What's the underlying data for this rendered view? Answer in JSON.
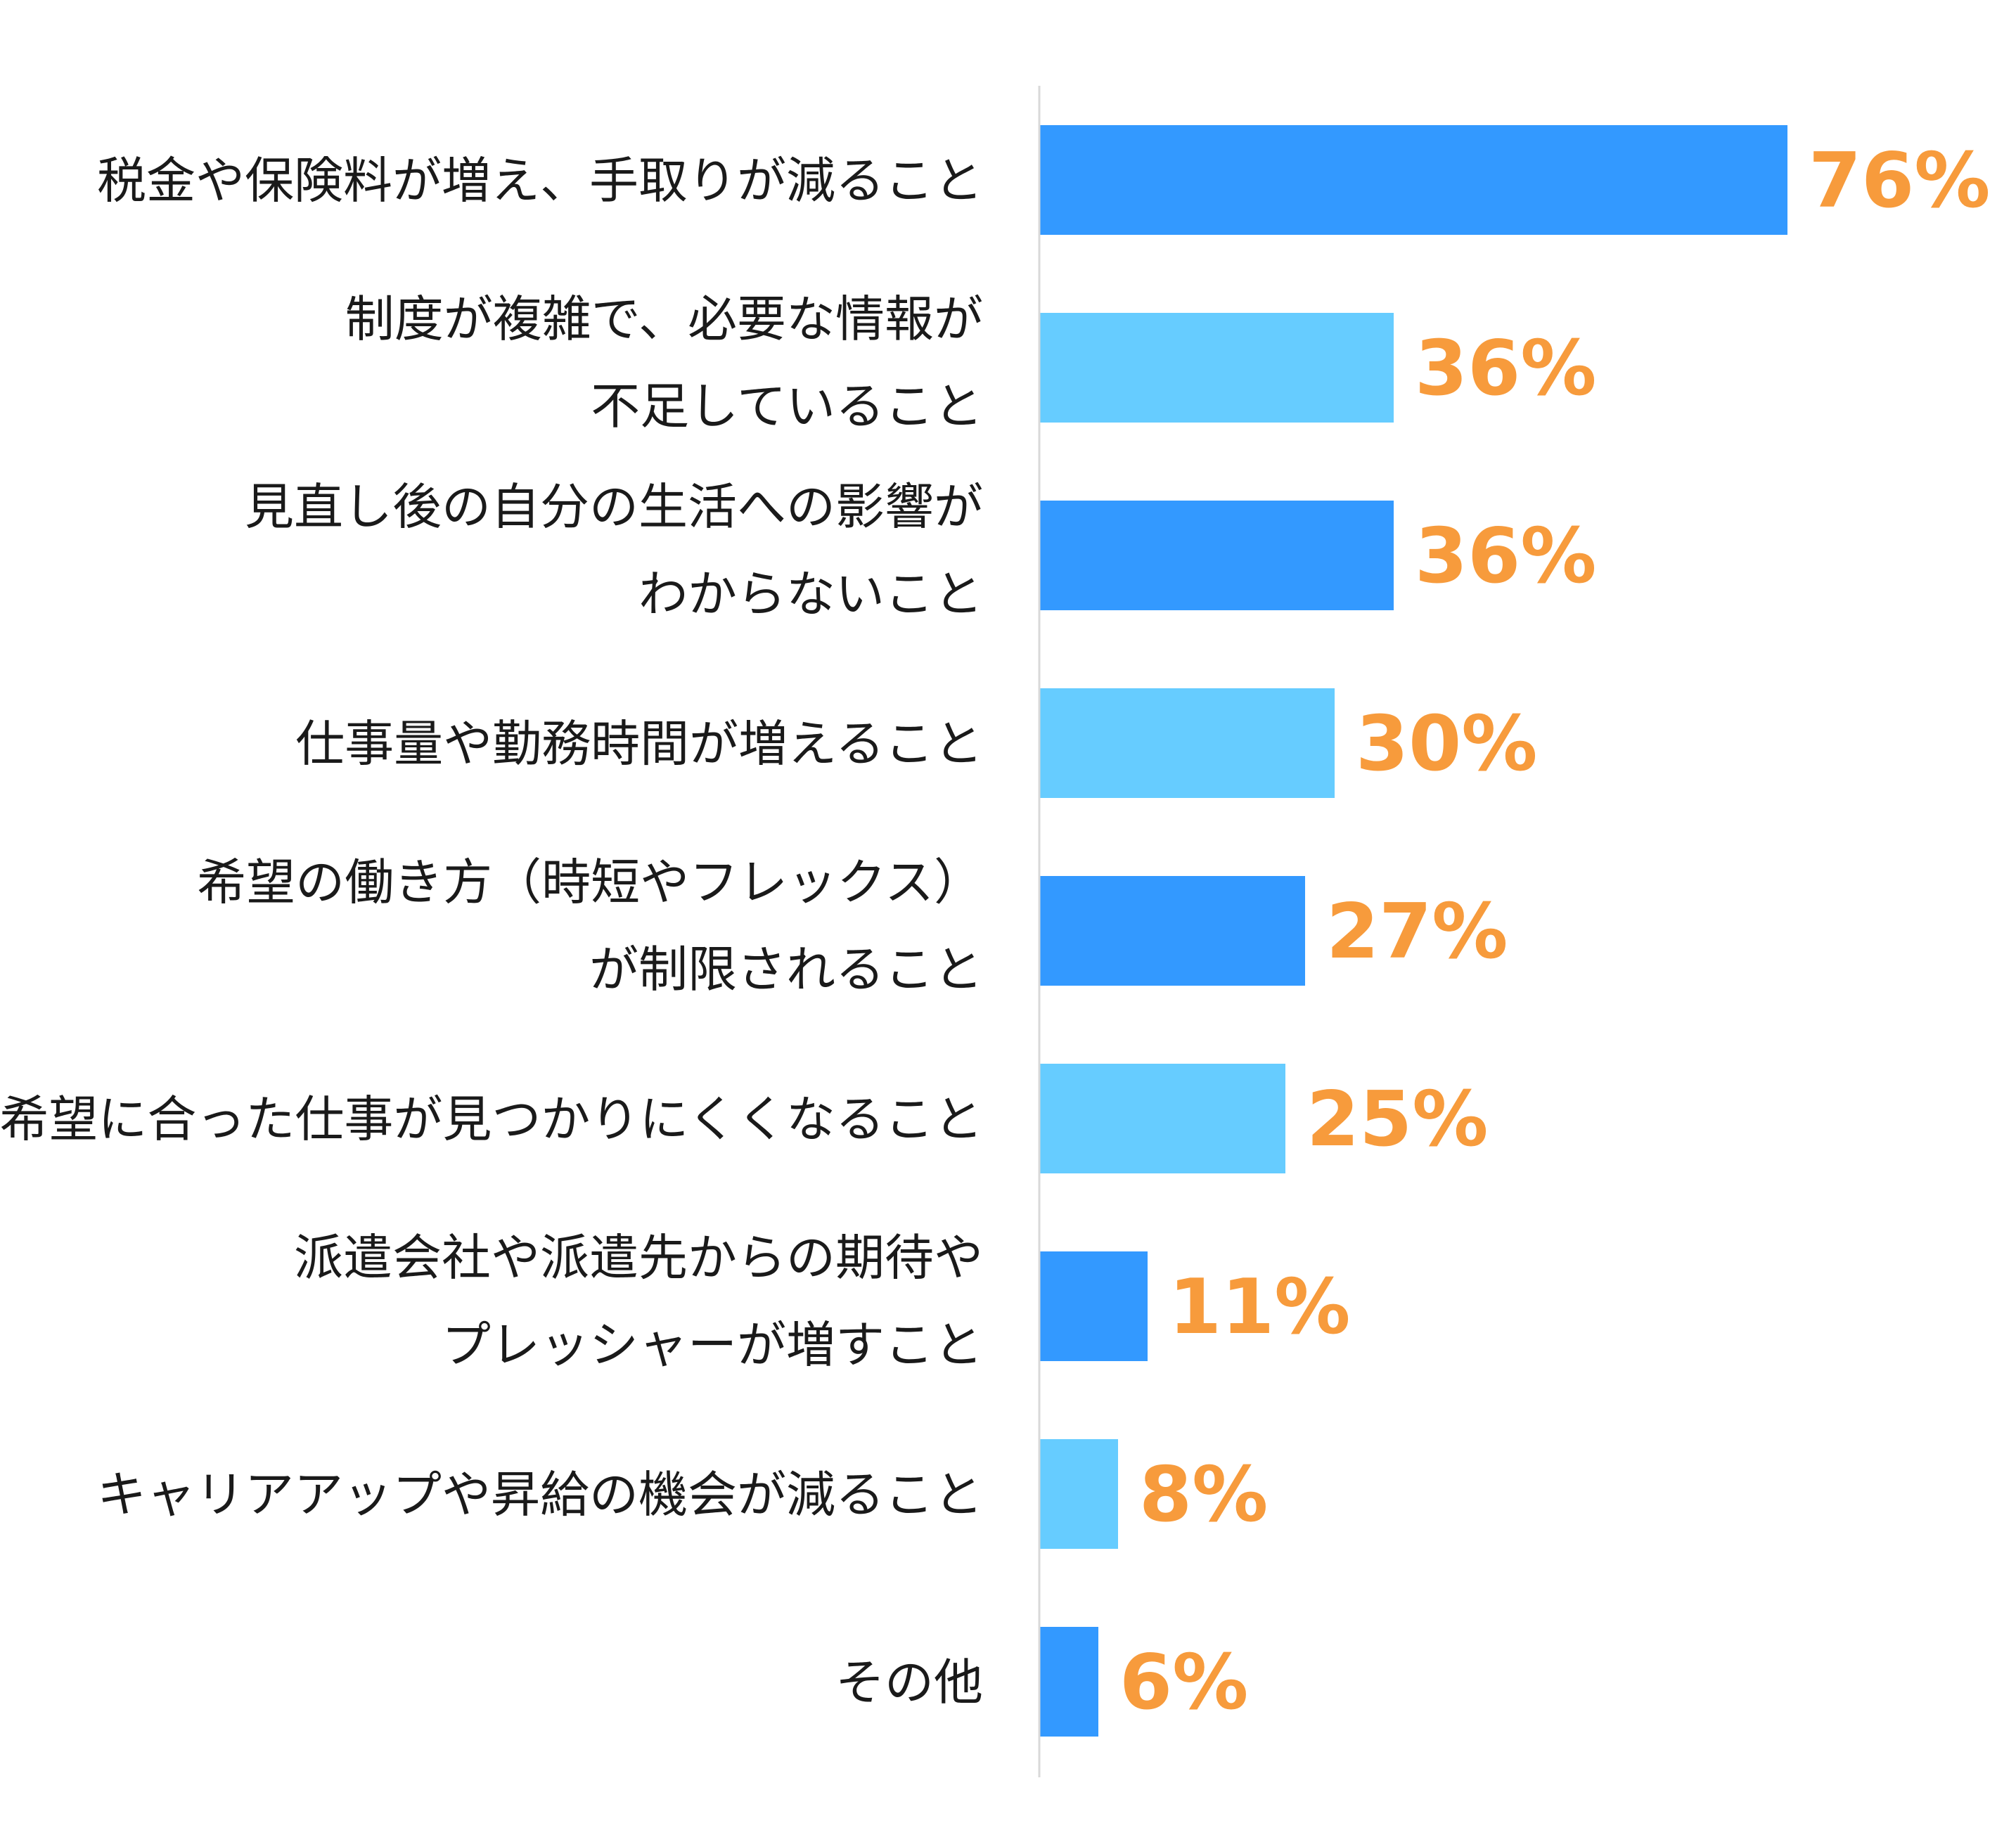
{
  "chart_data": {
    "type": "bar",
    "orientation": "horizontal",
    "categories": [
      [
        "税金や保険料が増え、手取りが減ること"
      ],
      [
        "制度が複雑で、必要な情報が",
        "不足していること"
      ],
      [
        "見直し後の自分の生活への影響が",
        "わからないこと"
      ],
      [
        "仕事量や勤務時間が増えること"
      ],
      [
        "希望の働き方（時短やフレックス）",
        "が制限されること"
      ],
      [
        "希望に合った仕事が見つかりにくくなること"
      ],
      [
        "派遣会社や派遣先からの期待や",
        "プレッシャーが増すこと"
      ],
      [
        "キャリアアップや昇給の機会が減ること"
      ],
      [
        "その他"
      ]
    ],
    "values": [
      76,
      36,
      36,
      30,
      27,
      25,
      11,
      8,
      6
    ],
    "value_labels": [
      "76%",
      "36%",
      "36%",
      "30%",
      "27%",
      "25%",
      "11%",
      "8%",
      "6%"
    ],
    "unit": "%",
    "xlim": [
      0,
      100
    ],
    "grid": false,
    "legend": "none",
    "colors": {
      "bar_primary": "#3399ff",
      "bar_secondary": "#66ccff",
      "value_label": "#f79b3c",
      "axis": "#d9d9d9",
      "label": "#1a1a1a"
    }
  }
}
